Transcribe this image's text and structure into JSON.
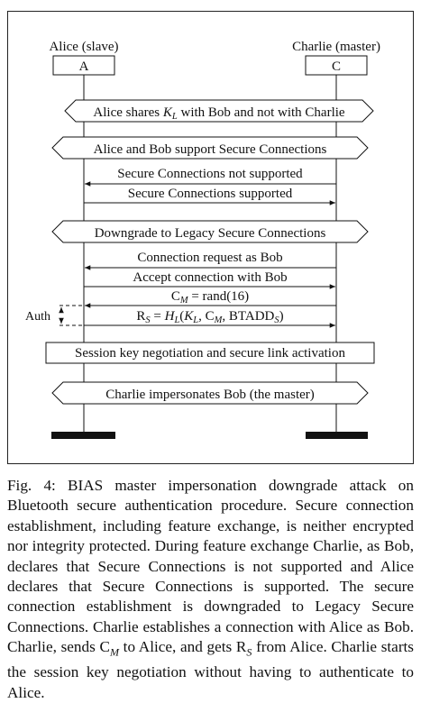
{
  "participants": {
    "alice": {
      "label": "Alice (slave)",
      "box": "A"
    },
    "charlie": {
      "label": "Charlie (master)",
      "box": "C"
    }
  },
  "notes": {
    "shares_key": "Alice shares K_L with Bob and not with Charlie",
    "support_sc": "Alice and Bob support Secure Connections",
    "downgrade": "Downgrade to Legacy Secure Connections",
    "session_key": "Session key negotiation and secure link activation",
    "impersonates": "Charlie impersonates Bob (the master)"
  },
  "messages": {
    "sc_not_supported": "Secure Connections not supported",
    "sc_supported": "Secure Connections supported",
    "conn_request": "Connection request as Bob",
    "accept_conn": "Accept connection with Bob",
    "cm_rand": "C_M = rand(16)",
    "rs_value": "R_S = H_L(K_L, C_M, BTADD_S)"
  },
  "auth_label": "Auth",
  "caption": {
    "label": "Fig. 4:",
    "text": "BIAS master impersonation downgrade attack on Bluetooth secure authentication procedure. Secure connection establishment, including feature exchange, is neither encrypted nor integrity protected. During feature exchange Charlie, as Bob, declares that Secure Connections is not supported and Alice declares that Secure Connections is supported. The secure connection establishment is downgraded to Legacy Secure Connections. Charlie establishes a connection with Alice as Bob. Charlie, sends C_M to Alice, and gets R_S from Alice. Charlie starts the session key negotiation without having to authenticate to Alice."
  }
}
